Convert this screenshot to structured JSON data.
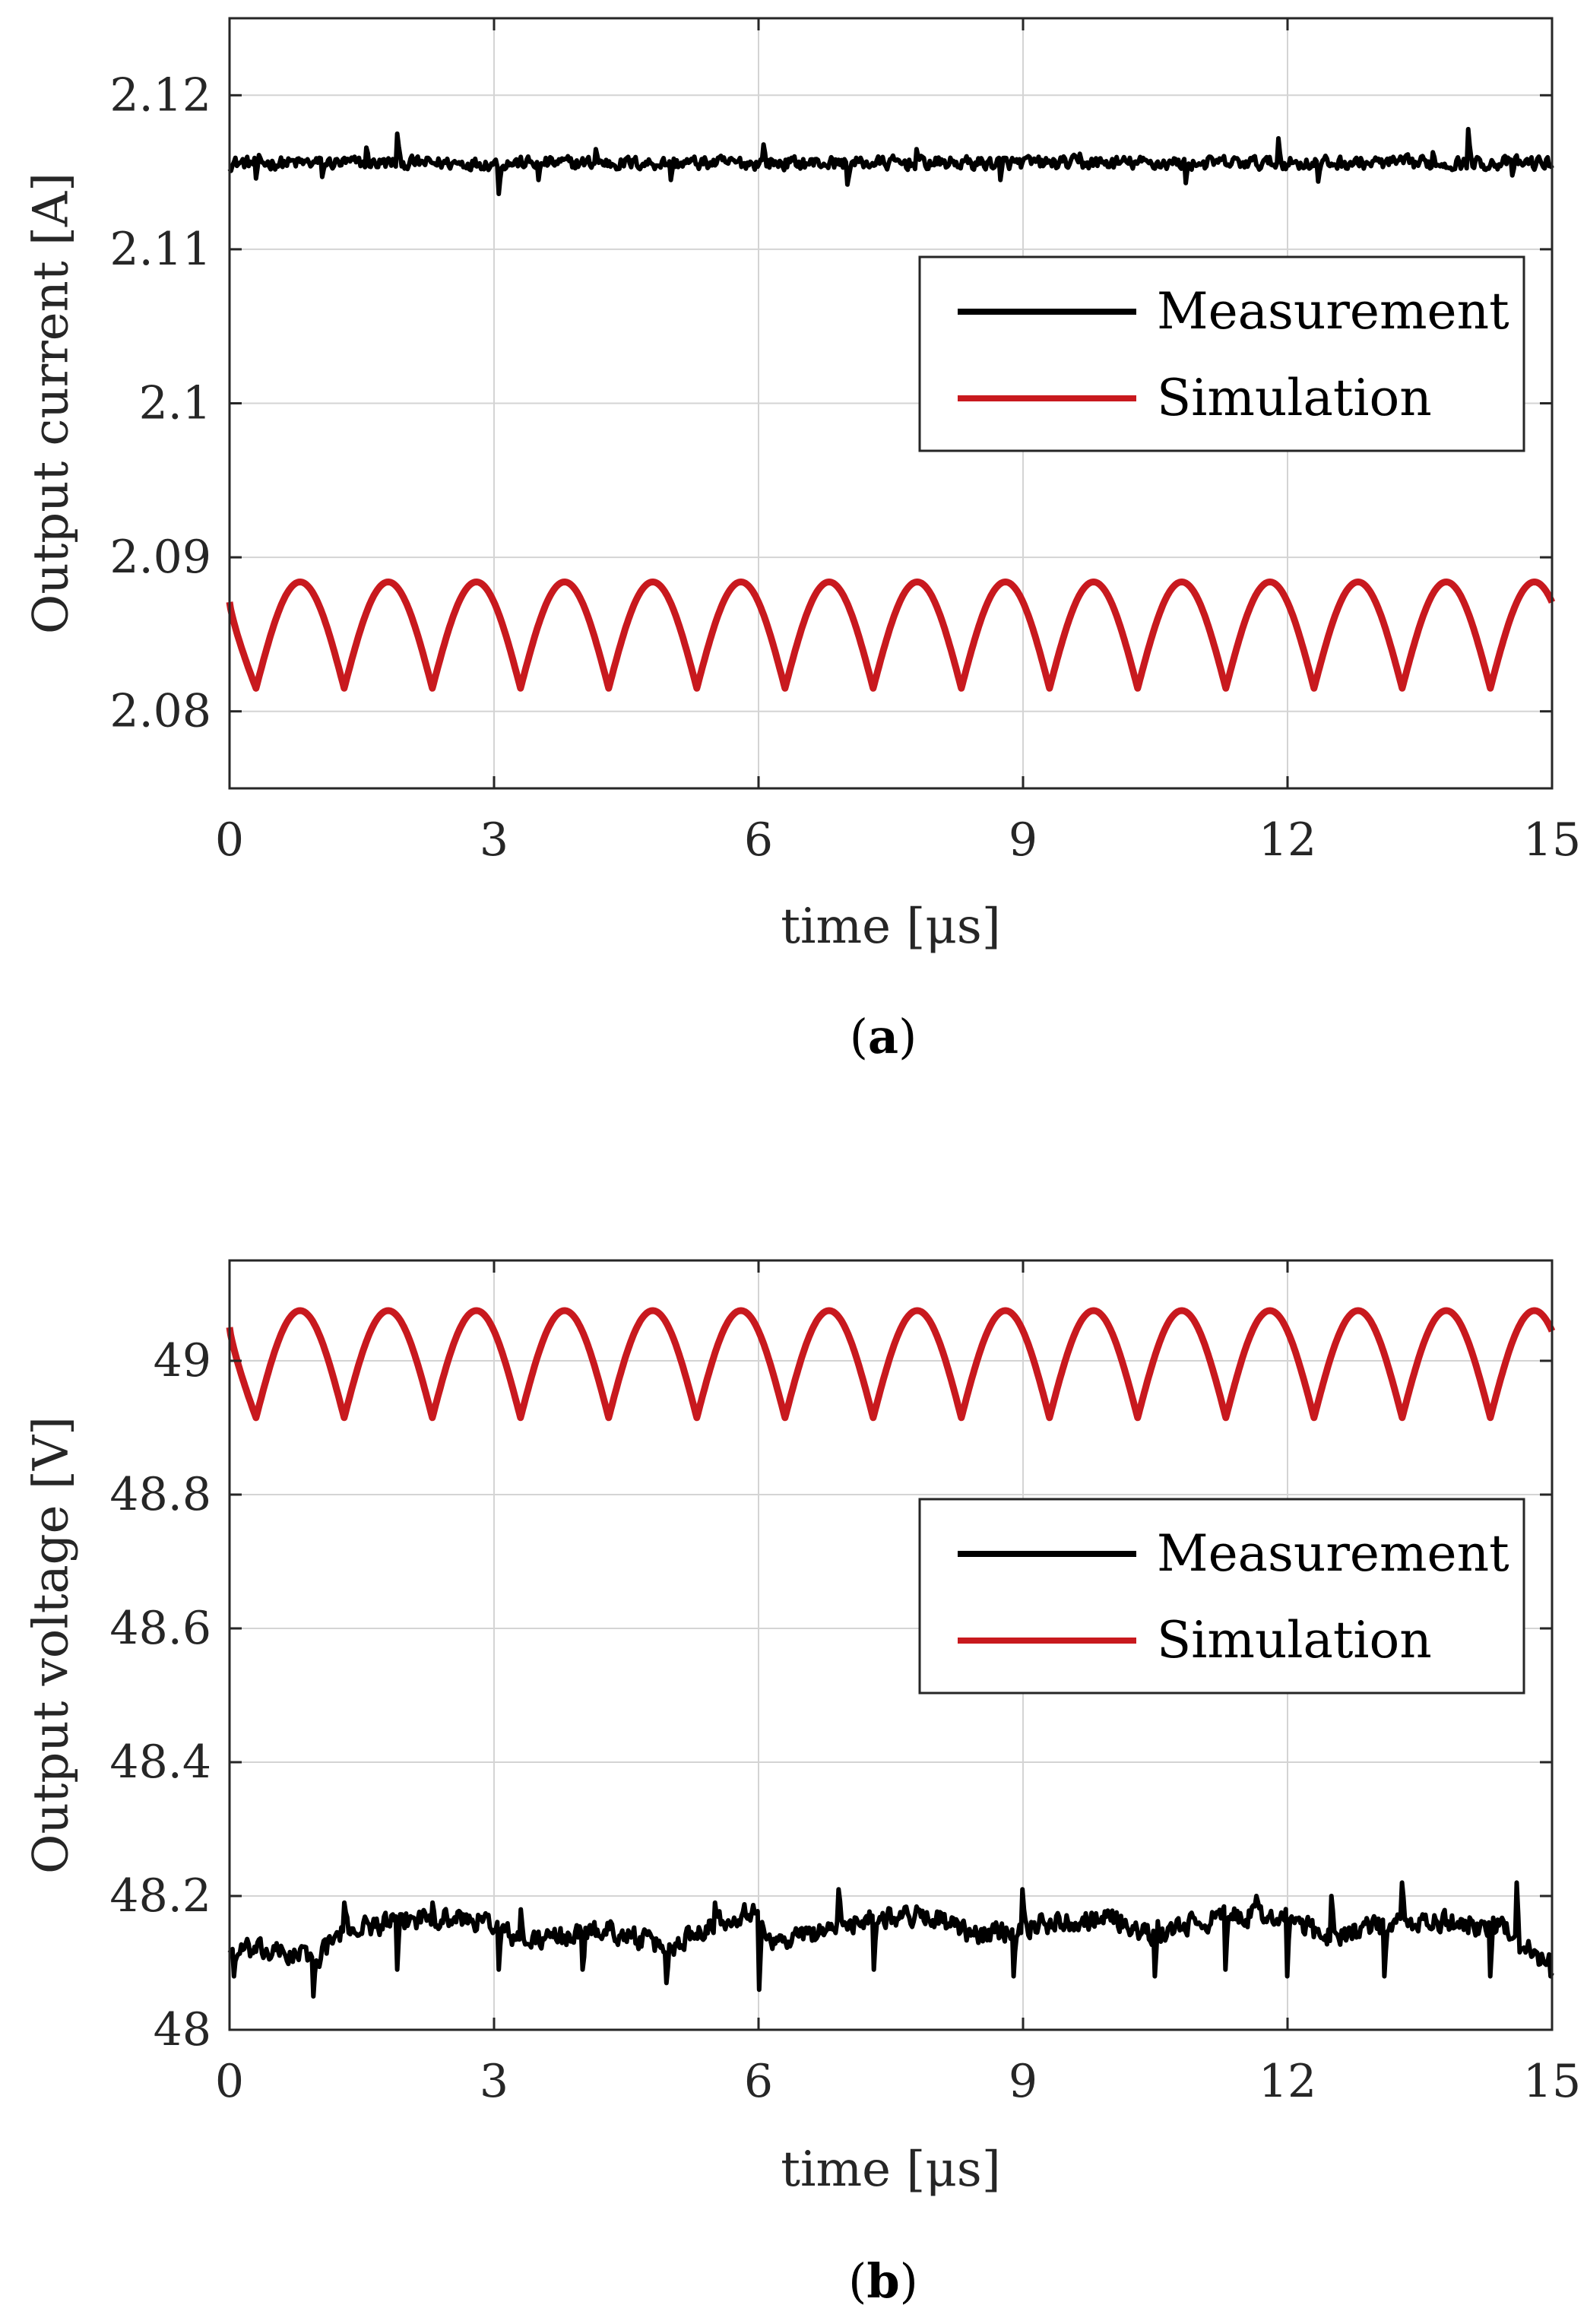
{
  "colors": {
    "measurement": "#000000",
    "simulation": "#c8191e",
    "axis": "#262626",
    "grid": "#d4d4d4"
  },
  "chart_data": [
    {
      "id": "a",
      "type": "line",
      "caption_label": "a",
      "xlabel": "time [μs]",
      "ylabel": "Output current [A]",
      "xlim": [
        0,
        15
      ],
      "ylim": [
        2.075,
        2.125
      ],
      "x_ticks": [
        0,
        3,
        6,
        9,
        12,
        15
      ],
      "x_tick_labels": [
        "0",
        "3",
        "6",
        "9",
        "12",
        "15"
      ],
      "y_ticks": [
        2.08,
        2.09,
        2.1,
        2.11,
        2.12
      ],
      "y_tick_labels": [
        "2.08",
        "2.09",
        "2.1",
        "2.11",
        "2.12"
      ],
      "grid": true,
      "legend_position": "upper-right",
      "series": [
        {
          "name": "Measurement",
          "kind": "noisy",
          "x_range": [
            0,
            15
          ],
          "points": 900,
          "mean": 2.1156,
          "noise_amplitude": 0.0006,
          "spikes": [
            [
              0.3,
              2.1146
            ],
            [
              1.05,
              2.1147
            ],
            [
              1.55,
              2.1166
            ],
            [
              1.9,
              2.1175
            ],
            [
              3.05,
              2.1136
            ],
            [
              3.5,
              2.1145
            ],
            [
              4.15,
              2.1165
            ],
            [
              5.0,
              2.1145
            ],
            [
              6.05,
              2.1168
            ],
            [
              7.0,
              2.1142
            ],
            [
              7.8,
              2.1165
            ],
            [
              8.75,
              2.1145
            ],
            [
              9.65,
              2.1162
            ],
            [
              10.85,
              2.1143
            ],
            [
              11.9,
              2.1172
            ],
            [
              12.35,
              2.1144
            ],
            [
              13.65,
              2.1163
            ],
            [
              14.05,
              2.1178
            ],
            [
              14.55,
              2.1148
            ]
          ]
        },
        {
          "name": "Simulation",
          "kind": "ripple",
          "x_range": [
            0,
            15
          ],
          "start_phase": 0.3,
          "period": 1,
          "top": 2.0884,
          "bottom": 2.0815,
          "start_value": 2.0871,
          "end_value": 2.0879
        }
      ]
    },
    {
      "id": "b",
      "type": "line",
      "caption_label": "b",
      "xlabel": "time [μs]",
      "ylabel": "Output voltage [V]",
      "xlim": [
        0,
        15
      ],
      "ylim": [
        48,
        49.15
      ],
      "x_ticks": [
        0,
        3,
        6,
        9,
        12,
        15
      ],
      "x_tick_labels": [
        "0",
        "3",
        "6",
        "9",
        "12",
        "15"
      ],
      "y_ticks": [
        48,
        48.2,
        48.4,
        48.6,
        48.8,
        49
      ],
      "y_tick_labels": [
        "48",
        "48.2",
        "48.4",
        "48.6",
        "48.8",
        "49"
      ],
      "grid": true,
      "legend_position": "upper-right",
      "series": [
        {
          "name": "Measurement",
          "kind": "noisy",
          "x_range": [
            0,
            15
          ],
          "points": 900,
          "mean": 48.15,
          "noise_amplitude": 0.022,
          "drift": [
            [
              0.0,
              48.12
            ],
            [
              1.0,
              48.11
            ],
            [
              1.3,
              48.15
            ],
            [
              2.3,
              48.17
            ],
            [
              3.0,
              48.16
            ],
            [
              3.3,
              48.13
            ],
            [
              4.3,
              48.15
            ],
            [
              5.0,
              48.12
            ],
            [
              5.3,
              48.15
            ],
            [
              5.9,
              48.18
            ],
            [
              6.2,
              48.13
            ],
            [
              7.3,
              48.17
            ],
            [
              8.0,
              48.17
            ],
            [
              8.4,
              48.14
            ],
            [
              9.3,
              48.16
            ],
            [
              10.0,
              48.17
            ],
            [
              10.4,
              48.14
            ],
            [
              11.3,
              48.17
            ],
            [
              12.0,
              48.17
            ],
            [
              12.4,
              48.14
            ],
            [
              13.3,
              48.16
            ],
            [
              14.0,
              48.16
            ],
            [
              14.5,
              48.15
            ],
            [
              14.9,
              48.1
            ]
          ],
          "spikes": [
            [
              0.05,
              48.08
            ],
            [
              0.95,
              48.05
            ],
            [
              1.3,
              48.19
            ],
            [
              1.9,
              48.09
            ],
            [
              2.3,
              48.19
            ],
            [
              3.05,
              48.09
            ],
            [
              3.3,
              48.18
            ],
            [
              4.0,
              48.09
            ],
            [
              4.95,
              48.07
            ],
            [
              5.5,
              48.19
            ],
            [
              6.0,
              48.06
            ],
            [
              6.9,
              48.21
            ],
            [
              7.3,
              48.09
            ],
            [
              8.9,
              48.08
            ],
            [
              9.0,
              48.21
            ],
            [
              10.5,
              48.08
            ],
            [
              11.3,
              48.09
            ],
            [
              11.65,
              48.2
            ],
            [
              12.0,
              48.08
            ],
            [
              12.5,
              48.2
            ],
            [
              13.1,
              48.08
            ],
            [
              13.3,
              48.22
            ],
            [
              14.3,
              48.08
            ],
            [
              14.6,
              48.22
            ],
            [
              14.98,
              48.08
            ]
          ]
        },
        {
          "name": "Simulation",
          "kind": "ripple",
          "x_range": [
            0,
            15
          ],
          "start_phase": 0.3,
          "period": 1,
          "top": 49.075,
          "bottom": 48.915,
          "start_value": 49.05,
          "end_value": 49.065
        }
      ]
    }
  ]
}
